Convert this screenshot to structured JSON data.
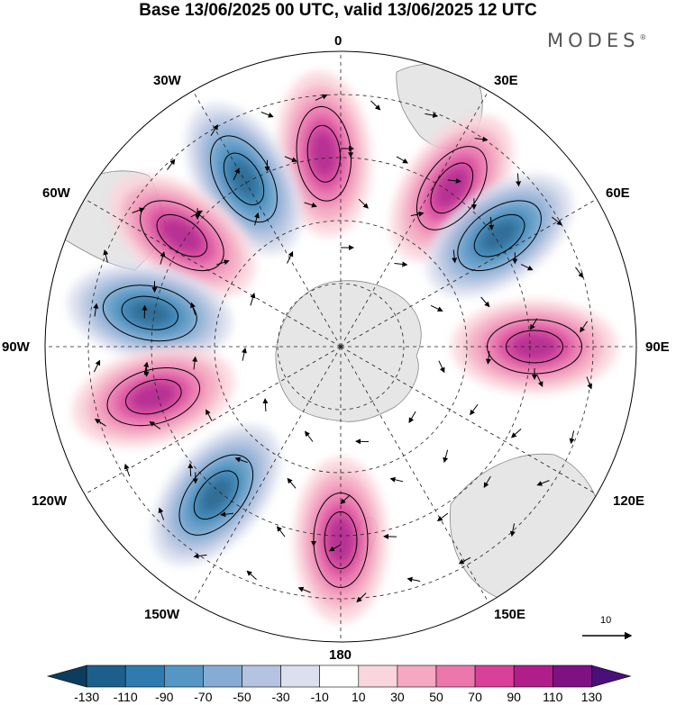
{
  "title": "Base 13/06/2025 00 UTC, valid 13/06/2025 12 UTC",
  "brand": {
    "name": "MODES",
    "mark": "®"
  },
  "map": {
    "projection": "south-polar-stereographic",
    "longitude_labels": {
      "top": "0",
      "bottom": "180",
      "left": "90W",
      "right": "90E",
      "upper_left_1": "30W",
      "upper_left_2": "60W",
      "upper_right_1": "30E",
      "upper_right_2": "60E",
      "lower_left_1": "120W",
      "lower_left_2": "150W",
      "lower_right_1": "120E",
      "lower_right_2": "150E"
    },
    "reference_vector": "10",
    "anomaly_centers": [
      {
        "lon": -5,
        "sign": "positive"
      },
      {
        "lon": -30,
        "sign": "negative"
      },
      {
        "lon": 35,
        "sign": "positive"
      },
      {
        "lon": -55,
        "sign": "positive"
      },
      {
        "lon": 55,
        "sign": "negative"
      },
      {
        "lon": -80,
        "sign": "negative"
      },
      {
        "lon": 90,
        "sign": "positive"
      },
      {
        "lon": -105,
        "sign": "positive"
      },
      {
        "lon": -140,
        "sign": "negative"
      },
      {
        "lon": 180,
        "sign": "positive"
      }
    ]
  },
  "colorbar": {
    "ticks": [
      "-130",
      "-110",
      "-90",
      "-70",
      "-50",
      "-30",
      "-10",
      "10",
      "30",
      "50",
      "70",
      "90",
      "110",
      "130"
    ],
    "colors": [
      "#0e3c5c",
      "#1d5f8c",
      "#2f7bb0",
      "#5596c4",
      "#87acd4",
      "#b4c3e0",
      "#dcdfee",
      "#ffffff",
      "#fad5dd",
      "#f4a8c1",
      "#ec77ad",
      "#d9409a",
      "#b01f89",
      "#7e1282",
      "#4a0f78"
    ]
  }
}
